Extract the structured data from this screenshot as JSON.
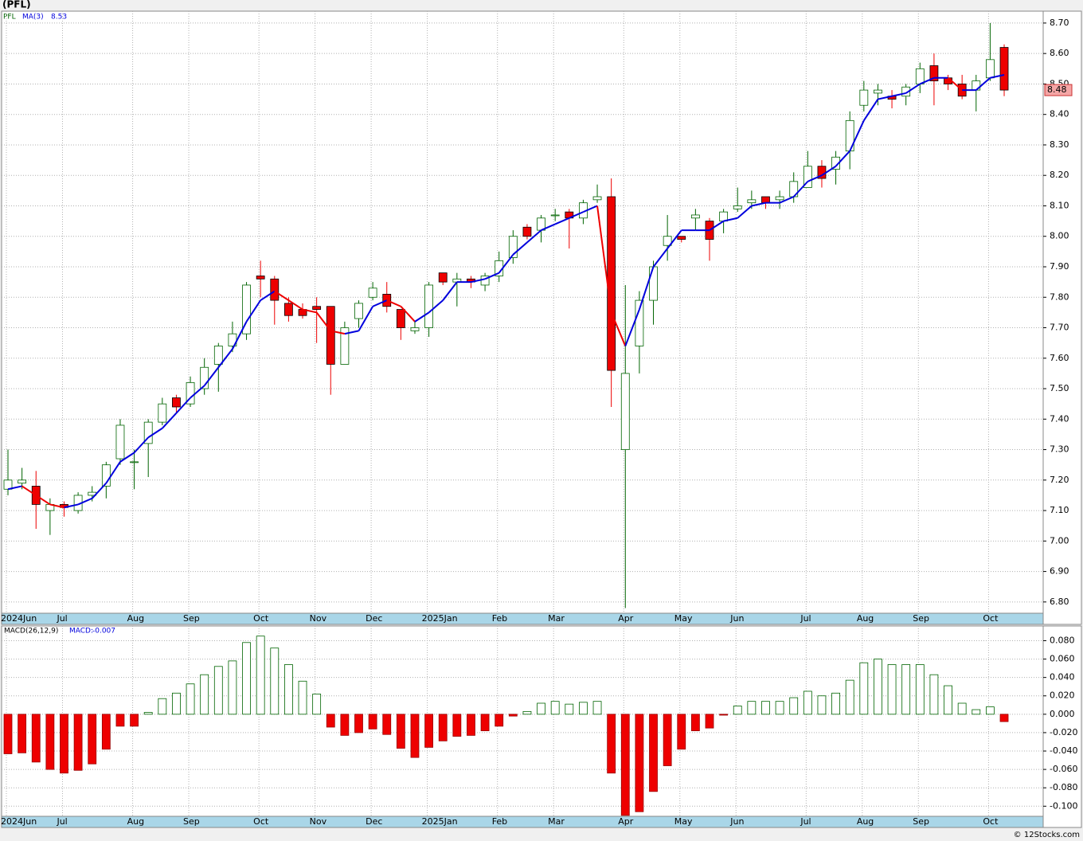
{
  "chart_data": [
    {
      "type": "candlestick",
      "title": "(PFL)",
      "symbol": "PFL",
      "categories": [
        "2024Jun",
        null,
        null,
        null,
        "Jul",
        null,
        null,
        null,
        null,
        "Aug",
        null,
        null,
        null,
        "Sep",
        null,
        null,
        null,
        null,
        "Oct",
        null,
        null,
        null,
        "Nov",
        null,
        null,
        null,
        "Dec",
        null,
        null,
        null,
        "2025Jan",
        null,
        null,
        null,
        null,
        "Feb",
        null,
        null,
        null,
        "Mar",
        null,
        null,
        null,
        null,
        "Apr",
        null,
        null,
        null,
        "May",
        null,
        null,
        null,
        "Jun",
        null,
        null,
        null,
        null,
        "Jul",
        null,
        null,
        null,
        "Aug",
        null,
        null,
        null,
        "Sep",
        null,
        null,
        null,
        null,
        "Oct",
        null
      ],
      "open": [
        7.17,
        7.19,
        7.18,
        7.1,
        7.12,
        7.1,
        7.15,
        7.18,
        7.27,
        7.26,
        7.32,
        7.39,
        7.47,
        7.45,
        7.5,
        7.58,
        7.64,
        7.68,
        7.87,
        7.86,
        7.78,
        7.76,
        7.77,
        7.77,
        7.58,
        7.73,
        7.8,
        7.81,
        7.76,
        7.69,
        7.7,
        7.88,
        7.85,
        7.86,
        7.84,
        7.87,
        7.93,
        8.03,
        8.02,
        8.07,
        8.08,
        8.06,
        8.12,
        8.13,
        7.3,
        7.64,
        7.79,
        7.97,
        8.0,
        8.06,
        8.05,
        8.05,
        8.09,
        8.11,
        8.13,
        8.12,
        8.13,
        8.16,
        8.23,
        8.22,
        8.28,
        8.43,
        8.47,
        8.46,
        8.46,
        8.5,
        8.56,
        8.52,
        8.5,
        8.48,
        8.52,
        8.62
      ],
      "high": [
        7.3,
        7.24,
        7.23,
        7.14,
        7.13,
        7.16,
        7.18,
        7.26,
        7.4,
        7.3,
        7.4,
        7.47,
        7.48,
        7.54,
        7.6,
        7.65,
        7.72,
        7.85,
        7.92,
        7.87,
        7.8,
        7.78,
        7.8,
        7.77,
        7.72,
        7.79,
        7.85,
        7.85,
        7.76,
        7.72,
        7.85,
        7.88,
        7.88,
        7.87,
        7.88,
        7.95,
        8.02,
        8.04,
        8.07,
        8.09,
        8.09,
        8.12,
        8.17,
        8.19,
        7.84,
        7.82,
        7.92,
        8.07,
        8.0,
        8.09,
        8.06,
        8.09,
        8.16,
        8.15,
        8.13,
        8.15,
        8.21,
        8.28,
        8.25,
        8.28,
        8.41,
        8.51,
        8.5,
        8.48,
        8.5,
        8.57,
        8.6,
        8.53,
        8.53,
        8.53,
        8.7,
        8.63
      ],
      "low": [
        7.15,
        7.17,
        7.04,
        7.02,
        7.08,
        7.09,
        7.13,
        7.14,
        7.25,
        7.17,
        7.21,
        7.38,
        7.42,
        7.44,
        7.48,
        7.49,
        7.62,
        7.66,
        7.8,
        7.71,
        7.72,
        7.73,
        7.65,
        7.48,
        7.58,
        7.7,
        7.79,
        7.75,
        7.66,
        7.68,
        7.67,
        7.84,
        7.77,
        7.83,
        7.82,
        7.85,
        7.91,
        7.99,
        7.98,
        8.05,
        7.96,
        8.04,
        8.11,
        7.44,
        6.78,
        7.55,
        7.71,
        7.92,
        7.98,
        8.02,
        7.92,
        8.01,
        8.08,
        8.09,
        8.09,
        8.09,
        8.11,
        8.16,
        8.16,
        8.17,
        8.22,
        8.41,
        8.43,
        8.42,
        8.43,
        8.47,
        8.43,
        8.48,
        8.45,
        8.41,
        8.51,
        8.46
      ],
      "close": [
        7.2,
        7.2,
        7.12,
        7.12,
        7.11,
        7.15,
        7.16,
        7.25,
        7.38,
        7.26,
        7.39,
        7.45,
        7.44,
        7.52,
        7.57,
        7.64,
        7.68,
        7.84,
        7.86,
        7.79,
        7.74,
        7.74,
        7.76,
        7.58,
        7.7,
        7.78,
        7.83,
        7.77,
        7.7,
        7.7,
        7.84,
        7.85,
        7.86,
        7.85,
        7.87,
        7.92,
        8.0,
        8.0,
        8.06,
        8.07,
        8.06,
        8.11,
        8.13,
        7.56,
        7.55,
        7.79,
        7.9,
        8.0,
        7.99,
        8.07,
        7.99,
        8.08,
        8.1,
        8.12,
        8.11,
        8.13,
        8.18,
        8.23,
        8.19,
        8.26,
        8.38,
        8.48,
        8.48,
        8.45,
        8.49,
        8.55,
        8.51,
        8.5,
        8.46,
        8.51,
        8.58,
        8.48
      ],
      "up_color": "#006400",
      "down_color": "#ee0000",
      "ma": {
        "name": "MA(3)",
        "value": 8.53,
        "color": "#0000dd",
        "down_color": "#ee0000",
        "values": [
          7.17,
          7.18,
          7.15,
          7.12,
          7.11,
          7.12,
          7.14,
          7.19,
          7.26,
          7.29,
          7.34,
          7.37,
          7.42,
          7.47,
          7.51,
          7.57,
          7.63,
          7.72,
          7.79,
          7.82,
          7.79,
          7.76,
          7.75,
          7.69,
          7.68,
          7.69,
          7.77,
          7.79,
          7.77,
          7.72,
          7.75,
          7.79,
          7.85,
          7.85,
          7.86,
          7.88,
          7.94,
          7.98,
          8.02,
          8.04,
          8.06,
          8.08,
          8.1,
          7.75,
          7.64,
          7.76,
          7.9,
          7.96,
          8.02,
          8.02,
          8.02,
          8.05,
          8.06,
          8.1,
          8.11,
          8.11,
          8.13,
          8.18,
          8.2,
          8.23,
          8.28,
          8.38,
          8.45,
          8.46,
          8.47,
          8.5,
          8.52,
          8.52,
          8.48,
          8.48,
          8.52,
          8.53
        ]
      },
      "last_price": {
        "value": 8.48,
        "label": "8.48"
      },
      "ylim": [
        6.763,
        8.739
      ],
      "yticks": [
        {
          "value": 6.8,
          "label": "6.80"
        },
        {
          "value": 6.9,
          "label": "6.90"
        },
        {
          "value": 7.0,
          "label": "7.00"
        },
        {
          "value": 7.1,
          "label": "7.10"
        },
        {
          "value": 7.2,
          "label": "7.20"
        },
        {
          "value": 7.3,
          "label": "7.30"
        },
        {
          "value": 7.4,
          "label": "7.40"
        },
        {
          "value": 7.5,
          "label": "7.50"
        },
        {
          "value": 7.6,
          "label": "7.60"
        },
        {
          "value": 7.7,
          "label": "7.70"
        },
        {
          "value": 7.8,
          "label": "7.80"
        },
        {
          "value": 7.9,
          "label": "7.90"
        },
        {
          "value": 8.0,
          "label": "8.00"
        },
        {
          "value": 8.1,
          "label": "8.10"
        },
        {
          "value": 8.2,
          "label": "8.20"
        },
        {
          "value": 8.3,
          "label": "8.30"
        },
        {
          "value": 8.4,
          "label": "8.40"
        },
        {
          "value": 8.5,
          "label": "8.50"
        },
        {
          "value": 8.6,
          "label": "8.60"
        },
        {
          "value": 8.7,
          "label": "8.70"
        }
      ],
      "grid": true
    },
    {
      "type": "bar",
      "name": "MACD(26,12,9)",
      "value_name": "MACD:",
      "value": -0.007,
      "categories": [
        "2024Jun",
        null,
        null,
        null,
        "Jul",
        null,
        null,
        null,
        null,
        "Aug",
        null,
        null,
        null,
        "Sep",
        null,
        null,
        null,
        null,
        "Oct",
        null,
        null,
        null,
        "Nov",
        null,
        null,
        null,
        "Dec",
        null,
        null,
        null,
        "2025Jan",
        null,
        null,
        null,
        null,
        "Feb",
        null,
        null,
        null,
        "Mar",
        null,
        null,
        null,
        null,
        "Apr",
        null,
        null,
        null,
        "May",
        null,
        null,
        null,
        "Jun",
        null,
        null,
        null,
        null,
        "Jul",
        null,
        null,
        null,
        "Aug",
        null,
        null,
        null,
        "Sep",
        null,
        null,
        null,
        null,
        "Oct",
        null
      ],
      "values": [
        -0.043,
        -0.042,
        -0.052,
        -0.06,
        -0.064,
        -0.061,
        -0.054,
        -0.038,
        -0.013,
        -0.013,
        0.002,
        0.017,
        0.023,
        0.033,
        0.043,
        0.052,
        0.058,
        0.078,
        0.085,
        0.072,
        0.054,
        0.036,
        0.022,
        -0.014,
        -0.023,
        -0.02,
        -0.016,
        -0.022,
        -0.037,
        -0.047,
        -0.036,
        -0.029,
        -0.024,
        -0.023,
        -0.018,
        -0.013,
        -0.002,
        0.003,
        0.012,
        0.014,
        0.011,
        0.013,
        0.014,
        -0.064,
        -0.11,
        -0.106,
        -0.084,
        -0.056,
        -0.038,
        -0.018,
        -0.015,
        -0.001,
        0.009,
        0.014,
        0.014,
        0.014,
        0.018,
        0.025,
        0.02,
        0.023,
        0.037,
        0.056,
        0.06,
        0.054,
        0.054,
        0.054,
        0.043,
        0.031,
        0.012,
        0.005,
        0.008,
        -0.008
      ],
      "up_color": "#006400",
      "down_color": "#ee0000",
      "ylim": [
        -0.111,
        0.096
      ],
      "yticks": [
        {
          "value": -0.1,
          "label": "-0.100"
        },
        {
          "value": -0.08,
          "label": "-0.080"
        },
        {
          "value": -0.06,
          "label": "-0.060"
        },
        {
          "value": -0.04,
          "label": "-0.040"
        },
        {
          "value": -0.02,
          "label": "-0.020"
        },
        {
          "value": 0,
          "label": "0.000"
        },
        {
          "value": 0.02,
          "label": "0.020"
        },
        {
          "value": 0.04,
          "label": "0.040"
        },
        {
          "value": 0.06,
          "label": "0.060"
        },
        {
          "value": 0.08,
          "label": "0.080"
        }
      ],
      "grid": true
    }
  ],
  "footer": "© 12Stocks.com"
}
